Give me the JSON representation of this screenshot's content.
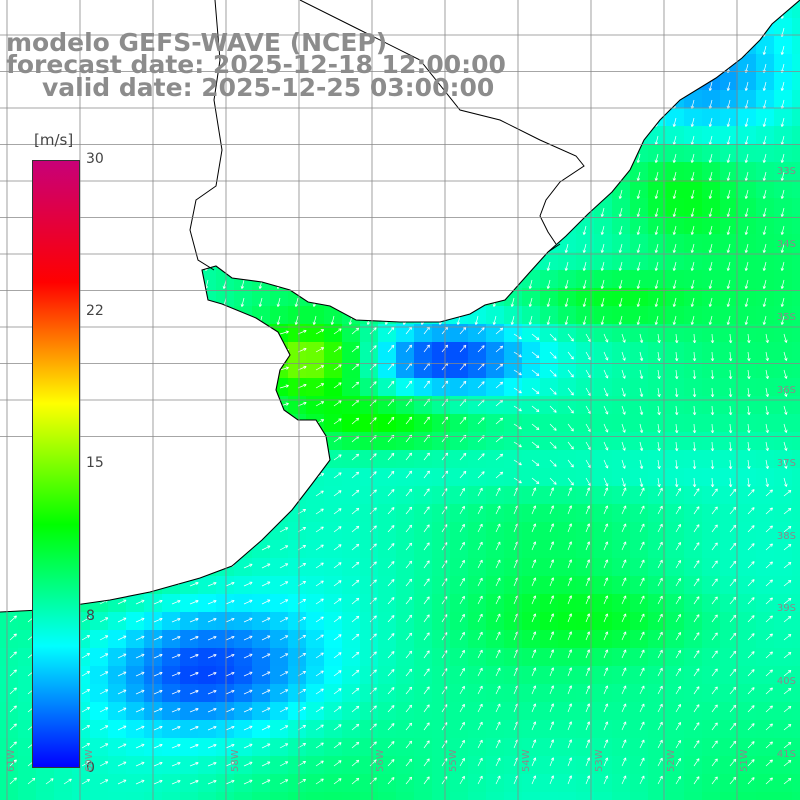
{
  "header": {
    "line1": "modelo GEFS-WAVE (NCEP)",
    "line2": "forecast date: 2025-12-18 12:00:00",
    "line3": "valid date: 2025-12-25 03:00:00"
  },
  "colorbar": {
    "unit": "[m/s]",
    "ticks": [
      "30",
      "22",
      "15",
      "8",
      "0"
    ],
    "stops": [
      "#0000ff",
      "#00ffff",
      "#00ff00",
      "#ffff00",
      "#ff0000",
      "#c80078"
    ]
  },
  "axes": {
    "lat_labels": [
      "33S",
      "34S",
      "35S",
      "36S",
      "37S",
      "38S",
      "39S",
      "40S",
      "41S"
    ],
    "lon_labels": [
      "61W",
      "60W",
      "59W",
      "58W",
      "57W",
      "56W",
      "55W",
      "54W",
      "53W",
      "52W",
      "51W"
    ]
  },
  "colors": {
    "land": "#ffffff",
    "grid": "#888888",
    "coast": "#000000",
    "title": "#8c8c8c",
    "arrow": "#ffffff"
  }
}
